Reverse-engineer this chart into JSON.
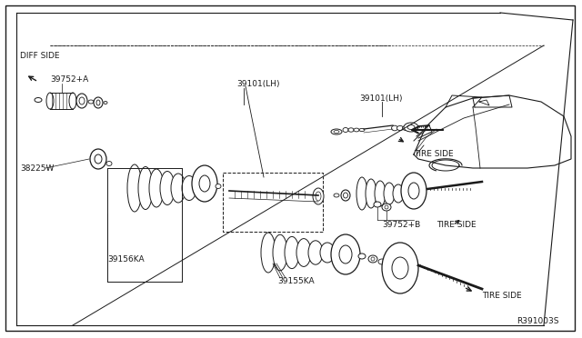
{
  "bg_color": "#ffffff",
  "line_color": "#1a1a1a",
  "text_color": "#1a1a1a",
  "title_ref": "R391003S",
  "fig_width": 6.4,
  "fig_height": 3.72,
  "dpi": 100,
  "labels": {
    "diff_side": "DIFF SIDE",
    "tire_side_1": "TIRE SIDE",
    "tire_side_2": "TIRE SIDE",
    "p39752A": "39752+A",
    "p38225W": "38225W",
    "p39156KA": "39156KA",
    "p39101LH_1": "39101(LH)",
    "p39101LH_2": "39101(LH)",
    "p39155KA": "39155KA",
    "p39752B": "39752+B"
  }
}
